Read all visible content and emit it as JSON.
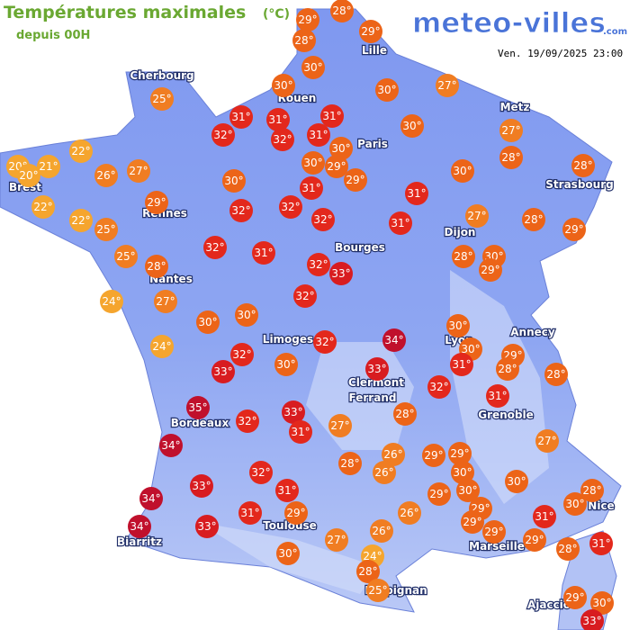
{
  "header": {
    "title": "Températures maximales",
    "unit": "(°C)",
    "subtitle": "depuis 00H",
    "logo": "meteo-villes",
    "logo_suffix": ".com",
    "date": "Ven. 19/09/2025 23:00"
  },
  "cities": [
    "Cherbourg",
    "Lille",
    "Rouen",
    "Paris",
    "Metz",
    "Brest",
    "Rennes",
    "Strasbourg",
    "Dijon",
    "Bourges",
    "Nantes",
    "Limoges",
    "Annecy",
    "Lyon",
    "Clermont",
    "Ferrand",
    "Grenoble",
    "Bordeaux",
    "Toulouse",
    "Nice",
    "Marseille",
    "Biarritz",
    "Perpignan",
    "Ajaccio"
  ],
  "markers": [
    {
      "value": 29,
      "label": "29°"
    },
    {
      "value": 28,
      "label": "28°"
    },
    {
      "value": 28,
      "label": "28°"
    },
    {
      "value": 29,
      "label": "29°"
    },
    {
      "value": 30,
      "label": "30°"
    },
    {
      "value": 30,
      "label": "30°"
    },
    {
      "value": 30,
      "label": "30°"
    },
    {
      "value": 27,
      "label": "27°"
    },
    {
      "value": 25,
      "label": "25°"
    },
    {
      "value": 31,
      "label": "31°"
    },
    {
      "value": 31,
      "label": "31°"
    },
    {
      "value": 31,
      "label": "31°"
    },
    {
      "value": 32,
      "label": "32°"
    },
    {
      "value": 32,
      "label": "32°"
    },
    {
      "value": 31,
      "label": "31°"
    },
    {
      "value": 30,
      "label": "30°"
    },
    {
      "value": 30,
      "label": "30°"
    },
    {
      "value": 27,
      "label": "27°"
    },
    {
      "value": 30,
      "label": "30°"
    },
    {
      "value": 29,
      "label": "29°"
    },
    {
      "value": 28,
      "label": "28°"
    },
    {
      "value": 28,
      "label": "28°"
    },
    {
      "value": 22,
      "label": "22°"
    },
    {
      "value": 20,
      "label": "20°"
    },
    {
      "value": 21,
      "label": "21°"
    },
    {
      "value": 20,
      "label": "20°"
    },
    {
      "value": 26,
      "label": "26°"
    },
    {
      "value": 27,
      "label": "27°"
    },
    {
      "value": 30,
      "label": "30°"
    },
    {
      "value": 30,
      "label": "30°"
    },
    {
      "value": 31,
      "label": "31°"
    },
    {
      "value": 29,
      "label": "29°"
    },
    {
      "value": 31,
      "label": "31°"
    },
    {
      "value": 29,
      "label": "29°"
    },
    {
      "value": 32,
      "label": "32°"
    },
    {
      "value": 32,
      "label": "32°"
    },
    {
      "value": 22,
      "label": "22°"
    },
    {
      "value": 22,
      "label": "22°"
    },
    {
      "value": 27,
      "label": "27°"
    },
    {
      "value": 28,
      "label": "28°"
    },
    {
      "value": 29,
      "label": "29°"
    },
    {
      "value": 32,
      "label": "32°"
    },
    {
      "value": 31,
      "label": "31°"
    },
    {
      "value": 25,
      "label": "25°"
    },
    {
      "value": 32,
      "label": "32°"
    },
    {
      "value": 31,
      "label": "31°"
    },
    {
      "value": 32,
      "label": "32°"
    },
    {
      "value": 33,
      "label": "33°"
    },
    {
      "value": 28,
      "label": "28°"
    },
    {
      "value": 30,
      "label": "30°"
    },
    {
      "value": 29,
      "label": "29°"
    },
    {
      "value": 25,
      "label": "25°"
    },
    {
      "value": 28,
      "label": "28°"
    },
    {
      "value": 27,
      "label": "27°"
    },
    {
      "value": 24,
      "label": "24°"
    },
    {
      "value": 32,
      "label": "32°"
    },
    {
      "value": 30,
      "label": "30°"
    },
    {
      "value": 30,
      "label": "30°"
    },
    {
      "value": 30,
      "label": "30°"
    },
    {
      "value": 34,
      "label": "34°"
    },
    {
      "value": 24,
      "label": "24°"
    },
    {
      "value": 30,
      "label": "30°"
    },
    {
      "value": 29,
      "label": "29°"
    },
    {
      "value": 32,
      "label": "32°"
    },
    {
      "value": 32,
      "label": "32°"
    },
    {
      "value": 33,
      "label": "33°"
    },
    {
      "value": 30,
      "label": "30°"
    },
    {
      "value": 31,
      "label": "31°"
    },
    {
      "value": 28,
      "label": "28°"
    },
    {
      "value": 28,
      "label": "28°"
    },
    {
      "value": 33,
      "label": "33°"
    },
    {
      "value": 32,
      "label": "32°"
    },
    {
      "value": 31,
      "label": "31°"
    },
    {
      "value": 35,
      "label": "35°"
    },
    {
      "value": 33,
      "label": "33°"
    },
    {
      "value": 32,
      "label": "32°"
    },
    {
      "value": 28,
      "label": "28°"
    },
    {
      "value": 31,
      "label": "31°"
    },
    {
      "value": 27,
      "label": "27°"
    },
    {
      "value": 34,
      "label": "34°"
    },
    {
      "value": 27,
      "label": "27°"
    },
    {
      "value": 26,
      "label": "26°"
    },
    {
      "value": 29,
      "label": "29°"
    },
    {
      "value": 29,
      "label": "29°"
    },
    {
      "value": 28,
      "label": "28°"
    },
    {
      "value": 26,
      "label": "26°"
    },
    {
      "value": 32,
      "label": "32°"
    },
    {
      "value": 33,
      "label": "33°"
    },
    {
      "value": 30,
      "label": "30°"
    },
    {
      "value": 34,
      "label": "34°"
    },
    {
      "value": 31,
      "label": "31°"
    },
    {
      "value": 30,
      "label": "30°"
    },
    {
      "value": 30,
      "label": "30°"
    },
    {
      "value": 29,
      "label": "29°"
    },
    {
      "value": 28,
      "label": "28°"
    },
    {
      "value": 26,
      "label": "26°"
    },
    {
      "value": 29,
      "label": "29°"
    },
    {
      "value": 30,
      "label": "30°"
    },
    {
      "value": 31,
      "label": "31°"
    },
    {
      "value": 29,
      "label": "29°"
    },
    {
      "value": 29,
      "label": "29°"
    },
    {
      "value": 31,
      "label": "31°"
    },
    {
      "value": 34,
      "label": "34°"
    },
    {
      "value": 33,
      "label": "33°"
    },
    {
      "value": 26,
      "label": "26°"
    },
    {
      "value": 29,
      "label": "29°"
    },
    {
      "value": 29,
      "label": "29°"
    },
    {
      "value": 31,
      "label": "31°"
    },
    {
      "value": 27,
      "label": "27°"
    },
    {
      "value": 30,
      "label": "30°"
    },
    {
      "value": 28,
      "label": "28°"
    },
    {
      "value": 24,
      "label": "24°"
    },
    {
      "value": 28,
      "label": "28°"
    },
    {
      "value": 25,
      "label": "25°"
    },
    {
      "value": 29,
      "label": "29°"
    },
    {
      "value": 30,
      "label": "30°"
    },
    {
      "value": 33,
      "label": "33°"
    }
  ]
}
